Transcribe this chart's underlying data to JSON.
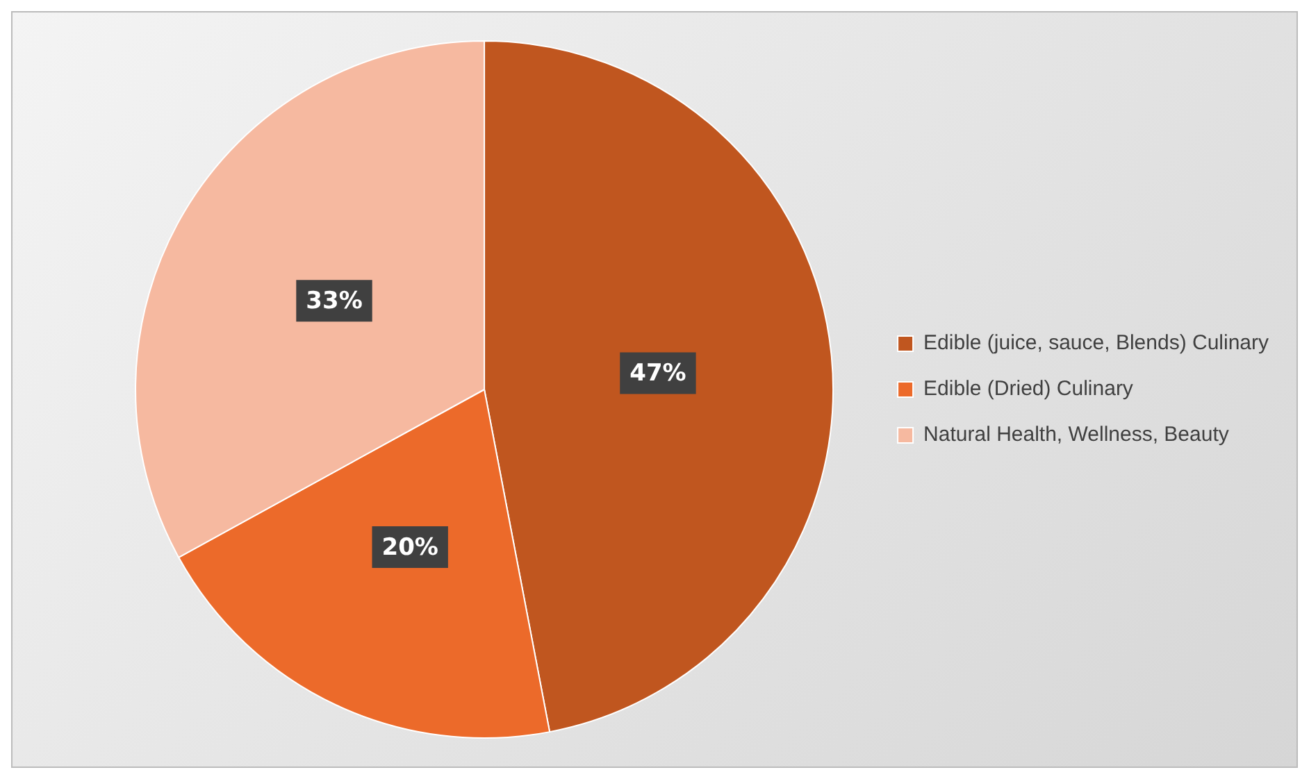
{
  "chart_data": {
    "type": "pie",
    "categories": [
      "Edible (juice, sauce, Blends) Culinary",
      "Edible (Dried) Culinary",
      "Natural Health, Wellness, Beauty"
    ],
    "values": [
      47,
      20,
      33
    ],
    "colors": [
      "#c0561f",
      "#ec6a2a",
      "#f6b9a0"
    ],
    "value_labels": [
      "47%",
      "20%",
      "33%"
    ],
    "legend": "right"
  }
}
